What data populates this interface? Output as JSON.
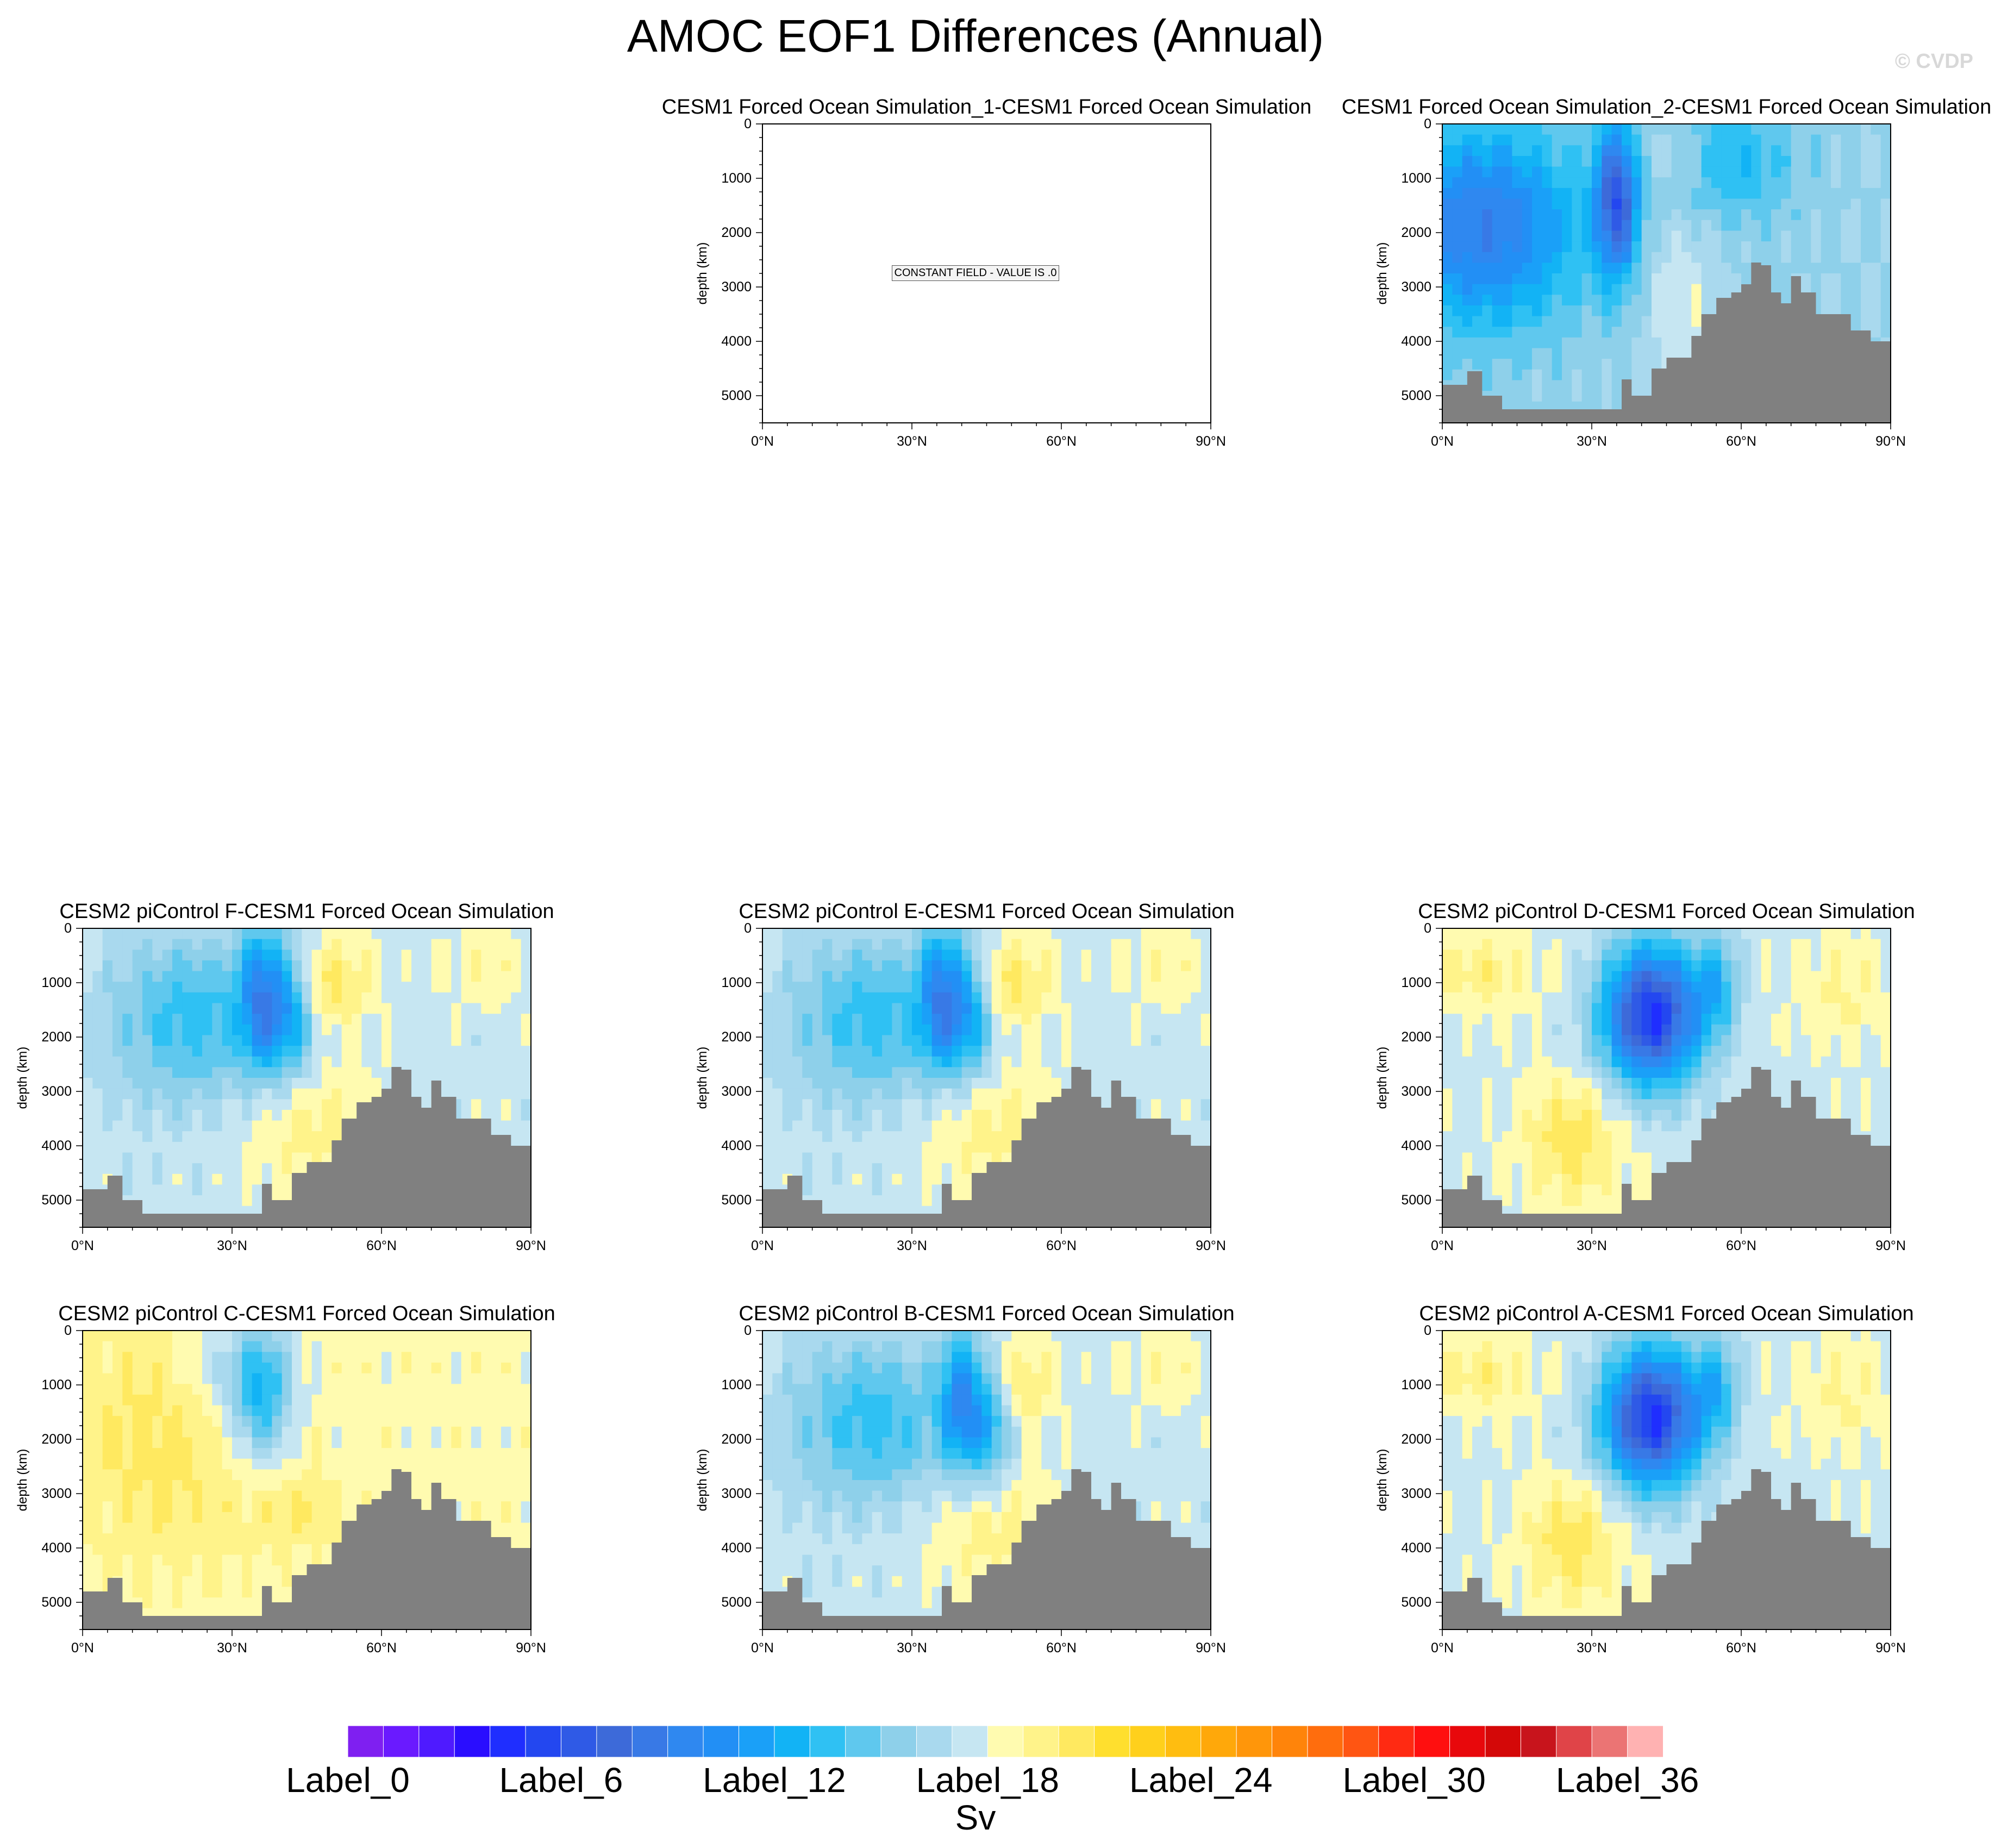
{
  "title": "AMOC EOF1 Differences (Annual)",
  "watermark": "© CVDP",
  "colors": {
    "land": "#808080",
    "palette": [
      "#7f1ff1",
      "#6a1aff",
      "#4f1aff",
      "#2a0dff",
      "#1f2eff",
      "#2347f0",
      "#2f5ae6",
      "#3d6ad9",
      "#3879e6",
      "#2f88f0",
      "#228ff5",
      "#1aa0f8",
      "#12b3f5",
      "#2fc1f3",
      "#5fc8ee",
      "#8ed0ea",
      "#a9d9ee",
      "#c6e6f2",
      "#fffbb0",
      "#fff38a",
      "#ffe960",
      "#ffdf2e",
      "#ffd01c",
      "#ffbd10",
      "#ffa80a",
      "#ff960a",
      "#ff840a",
      "#ff6d0d",
      "#ff5512",
      "#ff2a12",
      "#ff0f0f",
      "#e8080c",
      "#d40808",
      "#c8141c",
      "#e04448",
      "#eb7474",
      "#ffb2b2"
    ]
  },
  "chart_data": [
    {
      "type": "heatmap",
      "title": "CESM1 Forced Ocean Simulation_1-CESM1 Forced Ocean Simulation",
      "ylabel": "depth (km)",
      "ylim": [
        5500,
        0
      ],
      "xlim": [
        0,
        90
      ],
      "yticks": [
        "0",
        "1000",
        "2000",
        "3000",
        "4000",
        "5000"
      ],
      "xticks": [
        "0°N",
        "30°N",
        "60°N",
        "90°N"
      ],
      "constant_field": true,
      "note": "CONSTANT FIELD - VALUE IS .0"
    },
    {
      "type": "heatmap",
      "title": "CESM1 Forced Ocean Simulation_2-CESM1 Forced Ocean Simulation",
      "ylabel": "depth (km)",
      "ylim": [
        5500,
        0
      ],
      "xlim": [
        0,
        90
      ],
      "yticks": [
        "0",
        "1000",
        "2000",
        "3000",
        "4000",
        "5000"
      ],
      "xticks": [
        "0°N",
        "30°N",
        "60°N",
        "90°N"
      ],
      "pattern": "neg-broad",
      "max_center_lat": 35
    },
    {
      "type": "heatmap",
      "title": "CESM2 piControl F-CESM1 Forced Ocean Simulation",
      "ylabel": "depth (km)",
      "ylim": [
        5500,
        0
      ],
      "xlim": [
        0,
        90
      ],
      "yticks": [
        "0",
        "1000",
        "2000",
        "3000",
        "4000",
        "5000"
      ],
      "xticks": [
        "0°N",
        "30°N",
        "60°N",
        "90°N"
      ],
      "pattern": "neg-mid",
      "max_center_lat": 36
    },
    {
      "type": "heatmap",
      "title": "CESM2 piControl E-CESM1 Forced Ocean Simulation",
      "ylabel": "depth (km)",
      "ylim": [
        5500,
        0
      ],
      "xlim": [
        0,
        90
      ],
      "yticks": [
        "0",
        "1000",
        "2000",
        "3000",
        "4000",
        "5000"
      ],
      "xticks": [
        "0°N",
        "30°N",
        "60°N",
        "90°N"
      ],
      "pattern": "neg-mid",
      "max_center_lat": 36
    },
    {
      "type": "heatmap",
      "title": "CESM2 piControl D-CESM1 Forced Ocean Simulation",
      "ylabel": "depth (km)",
      "ylim": [
        5500,
        0
      ],
      "xlim": [
        0,
        90
      ],
      "yticks": [
        "0",
        "1000",
        "2000",
        "3000",
        "4000",
        "5000"
      ],
      "xticks": [
        "0°N",
        "30°N",
        "60°N",
        "90°N"
      ],
      "pattern": "neg-strong",
      "max_center_lat": 42
    },
    {
      "type": "heatmap",
      "title": "CESM2 piControl C-CESM1 Forced Ocean Simulation",
      "ylabel": "depth (km)",
      "ylim": [
        5500,
        0
      ],
      "xlim": [
        0,
        90
      ],
      "yticks": [
        "0",
        "1000",
        "2000",
        "3000",
        "4000",
        "5000"
      ],
      "xticks": [
        "0°N",
        "30°N",
        "60°N",
        "90°N"
      ],
      "pattern": "neg-weak",
      "max_center_lat": 36
    },
    {
      "type": "heatmap",
      "title": "CESM2 piControl B-CESM1 Forced Ocean Simulation",
      "ylabel": "depth (km)",
      "ylim": [
        5500,
        0
      ],
      "xlim": [
        0,
        90
      ],
      "yticks": [
        "0",
        "1000",
        "2000",
        "3000",
        "4000",
        "5000"
      ],
      "xticks": [
        "0°N",
        "30°N",
        "60°N",
        "90°N"
      ],
      "pattern": "neg-mid",
      "max_center_lat": 40
    },
    {
      "type": "heatmap",
      "title": "CESM2 piControl A-CESM1 Forced Ocean Simulation",
      "ylabel": "depth (km)",
      "ylim": [
        5500,
        0
      ],
      "xlim": [
        0,
        90
      ],
      "yticks": [
        "0",
        "1000",
        "2000",
        "3000",
        "4000",
        "5000"
      ],
      "xticks": [
        "0°N",
        "30°N",
        "60°N",
        "90°N"
      ],
      "pattern": "neg-strong",
      "max_center_lat": 42
    }
  ],
  "colorbar": {
    "labels": [
      "Label_0",
      "Label_6",
      "Label_12",
      "Label_18",
      "Label_24",
      "Label_30",
      "Label_36"
    ],
    "units": "Sv"
  }
}
